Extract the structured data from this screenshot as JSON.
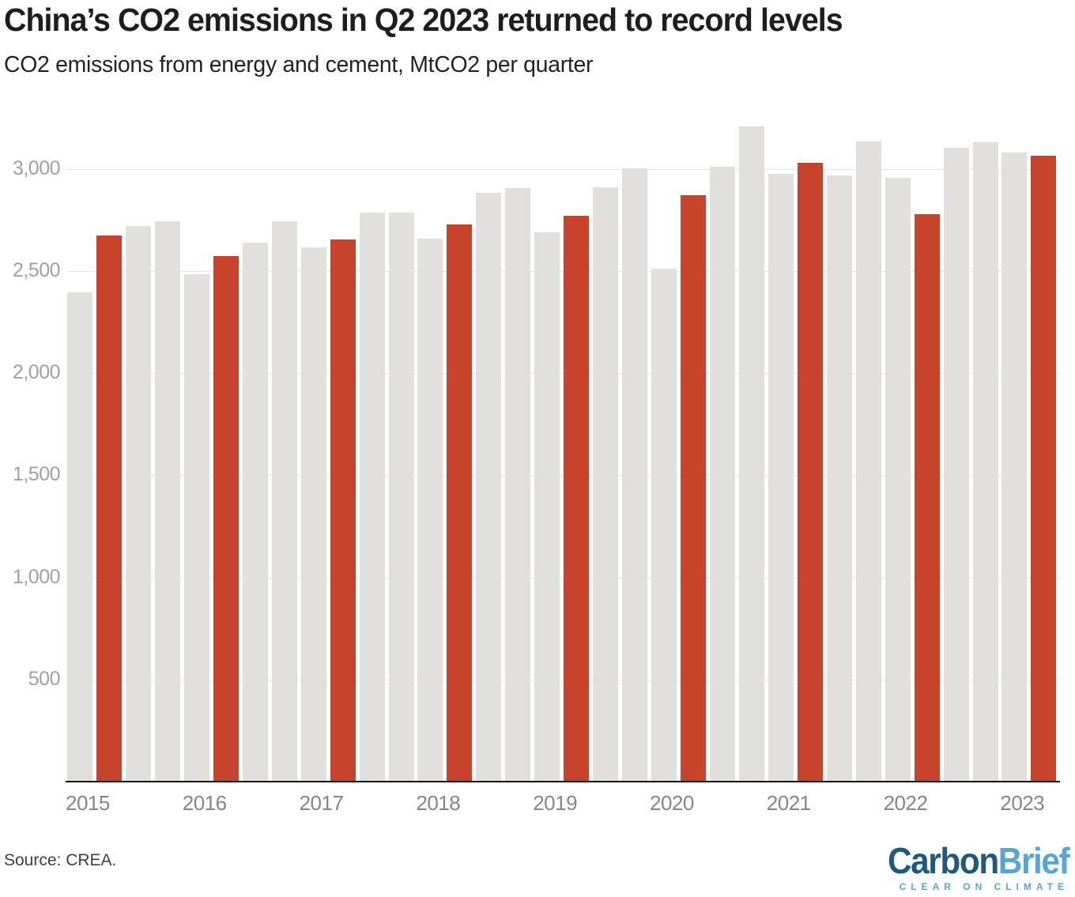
{
  "header": {
    "title": "China’s CO2 emissions in Q2 2023 returned to record levels",
    "subtitle": "CO2 emissions from energy and cement, MtCO2 per quarter"
  },
  "footer": {
    "source": "Source: CREA.",
    "logo": {
      "part1": "Carbon",
      "part2": "Brief",
      "tagline": "CLEAR ON CLIMATE",
      "part1_color": "#20597f",
      "part2_color": "#58a3d8"
    }
  },
  "chart_data": {
    "type": "bar",
    "title": "China’s CO2 emissions in Q2 2023 returned to record levels",
    "subtitle": "CO2 emissions from energy and cement, MtCO2 per quarter",
    "unit": "MtCO2 per quarter",
    "ylim": [
      0,
      3400
    ],
    "grid": true,
    "highlight_quarter": "Q2",
    "colors": {
      "default": "#e1e0de",
      "highlight": "#c7432b"
    },
    "yticks": [
      {
        "value": 500,
        "label": "500"
      },
      {
        "value": 1000,
        "label": "1,000"
      },
      {
        "value": 1500,
        "label": "1,500"
      },
      {
        "value": 2000,
        "label": "2,000"
      },
      {
        "value": 2500,
        "label": "2,500"
      },
      {
        "value": 3000,
        "label": "3,000"
      }
    ],
    "years": [
      "2015",
      "2016",
      "2017",
      "2018",
      "2019",
      "2020",
      "2021",
      "2022",
      "2023"
    ],
    "points": [
      {
        "year": "2015",
        "quarter": "Q1",
        "value": 2395
      },
      {
        "year": "2015",
        "quarter": "Q2",
        "value": 2675
      },
      {
        "year": "2015",
        "quarter": "Q3",
        "value": 2720
      },
      {
        "year": "2015",
        "quarter": "Q4",
        "value": 2745
      },
      {
        "year": "2016",
        "quarter": "Q1",
        "value": 2485
      },
      {
        "year": "2016",
        "quarter": "Q2",
        "value": 2575
      },
      {
        "year": "2016",
        "quarter": "Q3",
        "value": 2640
      },
      {
        "year": "2016",
        "quarter": "Q4",
        "value": 2745
      },
      {
        "year": "2017",
        "quarter": "Q1",
        "value": 2615
      },
      {
        "year": "2017",
        "quarter": "Q2",
        "value": 2655
      },
      {
        "year": "2017",
        "quarter": "Q3",
        "value": 2785
      },
      {
        "year": "2017",
        "quarter": "Q4",
        "value": 2785
      },
      {
        "year": "2018",
        "quarter": "Q1",
        "value": 2660
      },
      {
        "year": "2018",
        "quarter": "Q2",
        "value": 2730
      },
      {
        "year": "2018",
        "quarter": "Q3",
        "value": 2885
      },
      {
        "year": "2018",
        "quarter": "Q4",
        "value": 2905
      },
      {
        "year": "2019",
        "quarter": "Q1",
        "value": 2690
      },
      {
        "year": "2019",
        "quarter": "Q2",
        "value": 2770
      },
      {
        "year": "2019",
        "quarter": "Q3",
        "value": 2910
      },
      {
        "year": "2019",
        "quarter": "Q4",
        "value": 3005
      },
      {
        "year": "2020",
        "quarter": "Q1",
        "value": 2510
      },
      {
        "year": "2020",
        "quarter": "Q2",
        "value": 2870
      },
      {
        "year": "2020",
        "quarter": "Q3",
        "value": 3010
      },
      {
        "year": "2020",
        "quarter": "Q4",
        "value": 3210
      },
      {
        "year": "2021",
        "quarter": "Q1",
        "value": 2975
      },
      {
        "year": "2021",
        "quarter": "Q2",
        "value": 3030
      },
      {
        "year": "2021",
        "quarter": "Q3",
        "value": 2970
      },
      {
        "year": "2021",
        "quarter": "Q4",
        "value": 3135
      },
      {
        "year": "2022",
        "quarter": "Q1",
        "value": 2955
      },
      {
        "year": "2022",
        "quarter": "Q2",
        "value": 2780
      },
      {
        "year": "2022",
        "quarter": "Q3",
        "value": 3105
      },
      {
        "year": "2022",
        "quarter": "Q4",
        "value": 3130
      },
      {
        "year": "2023",
        "quarter": "Q1",
        "value": 3080
      },
      {
        "year": "2023",
        "quarter": "Q2",
        "value": 3065
      }
    ]
  }
}
